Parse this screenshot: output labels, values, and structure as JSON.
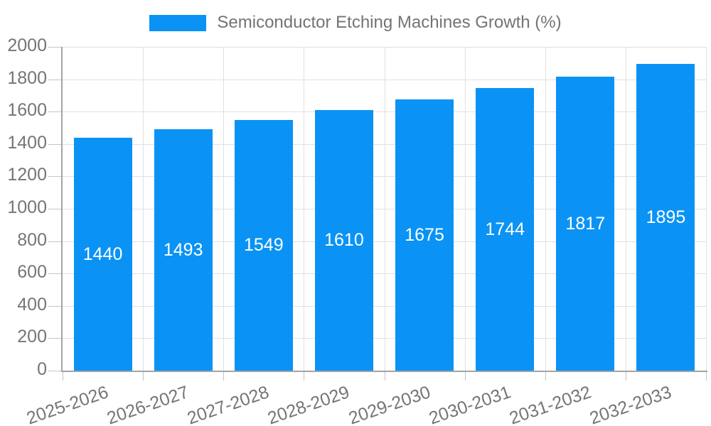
{
  "chart_data": {
    "type": "bar",
    "legend_label": "Semiconductor Etching Machines Growth (%)",
    "legend_position": "top",
    "categories": [
      "2025-2026",
      "2026-2027",
      "2027-2028",
      "2028-2029",
      "2029-2030",
      "2030-2031",
      "2031-2032",
      "2032-2033"
    ],
    "values": [
      1440,
      1493,
      1549,
      1610,
      1675,
      1744,
      1817,
      1895
    ],
    "value_labels_shown": true,
    "ylim": [
      0,
      2000
    ],
    "yticks": [
      0,
      200,
      400,
      600,
      800,
      1000,
      1200,
      1400,
      1600,
      1800,
      2000
    ],
    "grid": true,
    "x_label_rotation_deg": 19,
    "colors": {
      "bar": "#0a93f5",
      "grid": "#e0e0e0",
      "axis": "#a3a3a3",
      "tick": "#c4c4c4",
      "tick_label": "#757575",
      "legend_label": "#737373",
      "value_label": "#ffffff"
    }
  }
}
